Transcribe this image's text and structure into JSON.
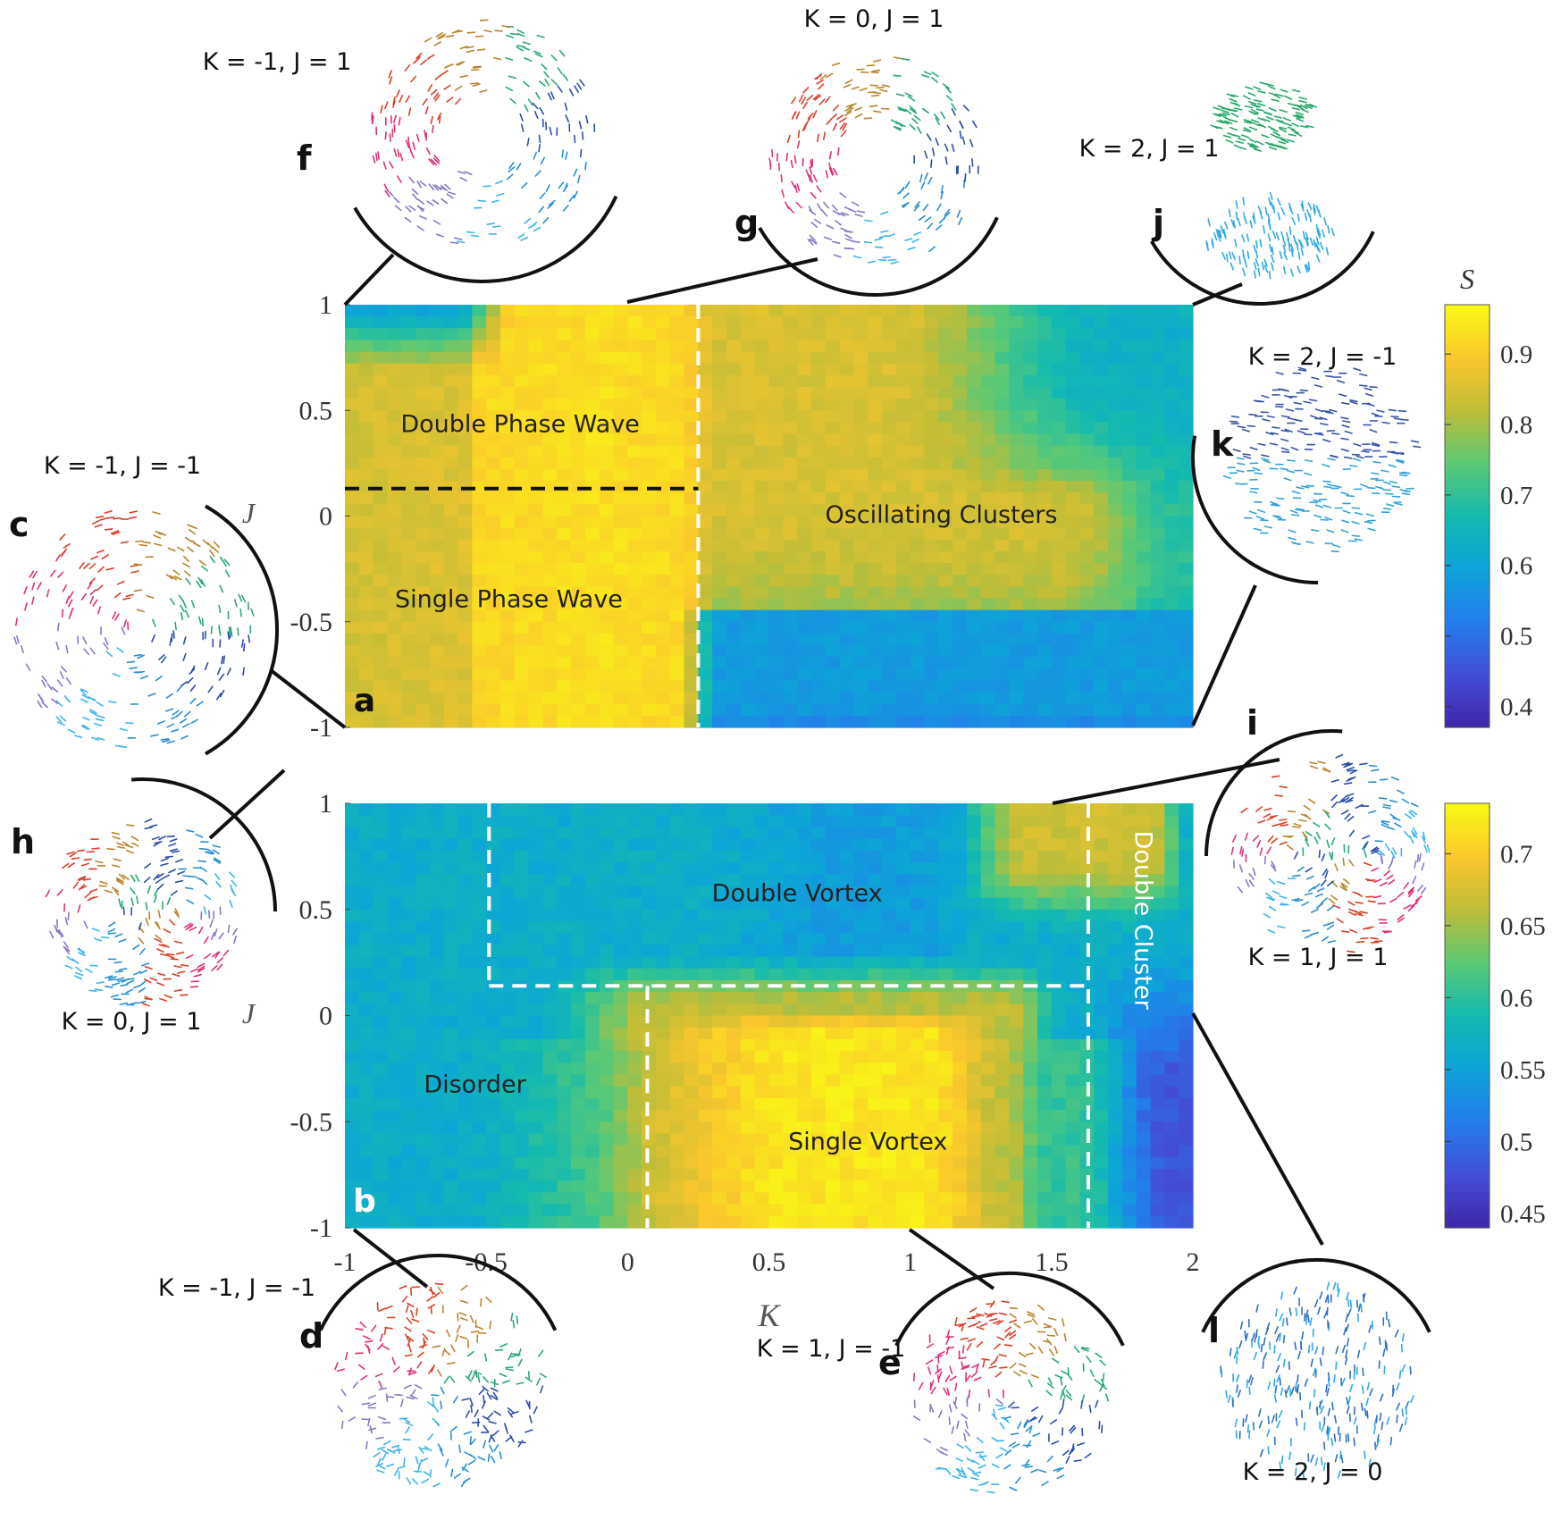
{
  "chart_data": [
    {
      "type": "heatmap",
      "panel_label": "a",
      "xlim": [
        -1,
        2
      ],
      "ylim": [
        -1,
        1
      ],
      "xticks": [],
      "yticks": [
        "1",
        "0.5",
        "0",
        "-0.5",
        "-1"
      ],
      "ylabel": "J",
      "colorbar": {
        "label": "S",
        "range": [
          0.37,
          0.97
        ],
        "ticks": [
          "0.9",
          "0.8",
          "0.7",
          "0.6",
          "0.5",
          "0.4"
        ],
        "tick_values": [
          0.9,
          0.8,
          0.7,
          0.6,
          0.5,
          0.4
        ]
      },
      "regions": [
        {
          "label": "Double Phase Wave",
          "K": -0.38,
          "J": 0.43,
          "color": "#222222"
        },
        {
          "label": "Single Phase Wave",
          "K": -0.42,
          "J": -0.4,
          "color": "#222222"
        },
        {
          "label": "Oscillating Clusters",
          "K": 1.11,
          "J": 0.0,
          "color": "#222222"
        }
      ],
      "boundaries": [
        {
          "orientation": "vertical",
          "K": 0.25,
          "J_range": [
            -1,
            1
          ],
          "color": "#ffffff"
        },
        {
          "orientation": "horizontal",
          "J": 0.13,
          "K_range": [
            -1,
            0.25
          ],
          "color": "#111111"
        }
      ],
      "grid": false
    },
    {
      "type": "heatmap",
      "panel_label": "b",
      "xlim": [
        -1,
        2
      ],
      "ylim": [
        -1,
        1
      ],
      "xticks": [
        "-1",
        "-0.5",
        "0",
        "0.5",
        "1",
        "1.5",
        "2"
      ],
      "yticks": [
        "1",
        "0.5",
        "0",
        "-0.5",
        "-1"
      ],
      "xlabel": "K",
      "ylabel": "J",
      "colorbar": {
        "label": "",
        "range": [
          0.44,
          0.735
        ],
        "ticks": [
          "0.7",
          "0.65",
          "0.6",
          "0.55",
          "0.5",
          "0.45"
        ],
        "tick_values": [
          0.7,
          0.65,
          0.6,
          0.55,
          0.5,
          0.45
        ]
      },
      "regions": [
        {
          "label": "Double Vortex",
          "K": 0.6,
          "J": 0.57,
          "color": "#222222"
        },
        {
          "label": "Disorder",
          "K": -0.54,
          "J": -0.33,
          "color": "#222222"
        },
        {
          "label": "Single Vortex",
          "K": 0.85,
          "J": -0.6,
          "color": "#222222"
        },
        {
          "label": "Double Cluster",
          "K": 1.82,
          "J": 0.45,
          "color": "#ffffff",
          "vertical": true
        }
      ],
      "boundaries": [
        {
          "orientation": "vertical",
          "K": -0.49,
          "J_range": [
            0.14,
            1
          ],
          "color": "#ffffff"
        },
        {
          "orientation": "horizontal",
          "J": 0.14,
          "K_range": [
            -0.49,
            1.63
          ],
          "color": "#ffffff"
        },
        {
          "orientation": "vertical",
          "K": 1.63,
          "J_range": [
            -1,
            1
          ],
          "color": "#ffffff"
        },
        {
          "orientation": "vertical",
          "K": 0.07,
          "J_range": [
            -1,
            0.14
          ],
          "color": "#ffffff"
        }
      ],
      "grid": false
    }
  ],
  "insets": [
    {
      "letter": "f",
      "caption": "K = -1, J = 1",
      "pattern": "double-phase-wave",
      "K": -1,
      "J": 1
    },
    {
      "letter": "g",
      "caption": "K = 0, J = 1",
      "pattern": "double-phase-wave",
      "K": 0,
      "J": 1
    },
    {
      "letter": "j",
      "caption": "K = 2, J = 1",
      "pattern": "oscillating-clusters",
      "K": 2,
      "J": 1
    },
    {
      "letter": "k",
      "caption": "K = 2, J = -1",
      "pattern": "oscillating-clusters",
      "K": 2,
      "J": -1
    },
    {
      "letter": "c",
      "caption": "K = -1, J = -1",
      "pattern": "single-phase-wave",
      "K": -1,
      "J": -1
    },
    {
      "letter": "h",
      "caption": "K = 0, J = 1",
      "pattern": "double-vortex",
      "K": 0,
      "J": 1
    },
    {
      "letter": "i",
      "caption": "K = 1, J = 1",
      "pattern": "double-vortex",
      "K": 1,
      "J": 1
    },
    {
      "letter": "d",
      "caption": "K = -1, J = -1",
      "pattern": "disorder",
      "K": -1,
      "J": -1
    },
    {
      "letter": "e",
      "caption": "K = 1, J = -1",
      "pattern": "single-vortex",
      "K": 1,
      "J": -1
    },
    {
      "letter": "l",
      "caption": "K = 2, J = 0",
      "pattern": "double-cluster",
      "K": 2,
      "J": 0
    }
  ]
}
